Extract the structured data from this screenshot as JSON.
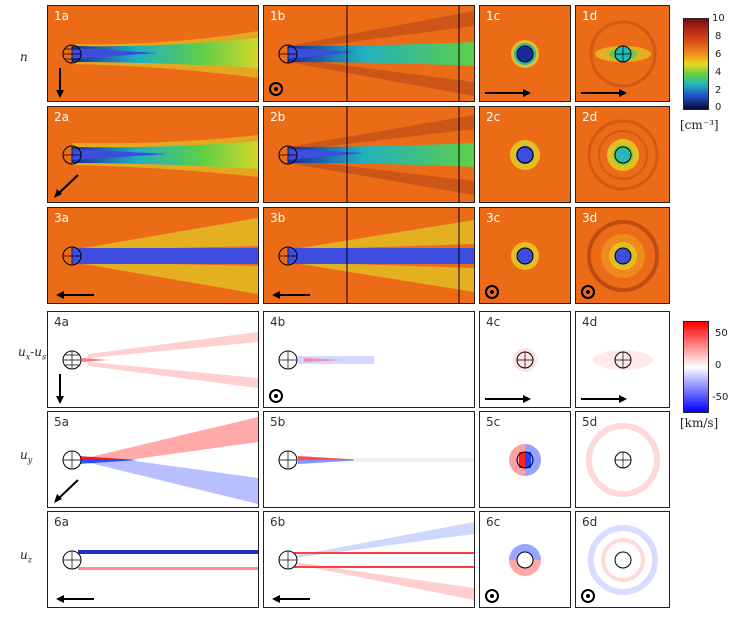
{
  "density_label": "n",
  "velocity_labels": {
    "ux": "u",
    "ux_sub": "x",
    "ux_mid": "-u",
    "ux_sub2": "sw",
    "uy": "u",
    "uy_sub": "y",
    "uz": "u",
    "uz_sub": "z"
  },
  "panels": {
    "r1": [
      "1a",
      "1b",
      "1c",
      "1d"
    ],
    "r2": [
      "2a",
      "2b",
      "2c",
      "2d"
    ],
    "r3": [
      "3a",
      "3b",
      "3c",
      "3d"
    ],
    "r4": [
      "4a",
      "4b",
      "4c",
      "4d"
    ],
    "r5": [
      "5a",
      "5b",
      "5c",
      "5d"
    ],
    "r6": [
      "6a",
      "6b",
      "6c",
      "6d"
    ]
  },
  "colorbar_density": {
    "ticks": [
      "10",
      "8",
      "6",
      "4",
      "2",
      "0"
    ],
    "unit": "[cm⁻³]",
    "colors": [
      "#7a0e0e",
      "#d23a1a",
      "#f08a1e",
      "#e8d820",
      "#5ecf46",
      "#26b8b8",
      "#1f55c8",
      "#0a0a3a"
    ]
  },
  "colorbar_velocity": {
    "ticks": [
      "50",
      "0",
      "-50"
    ],
    "unit": "[km/s]",
    "colors": [
      "#ff0000",
      "#ffffff",
      "#0000ff"
    ]
  },
  "colors": {
    "background_orange": "#ec6b16",
    "wake_blue": "#3d4de0",
    "red": "#ff2020",
    "blue": "#2040ff"
  }
}
